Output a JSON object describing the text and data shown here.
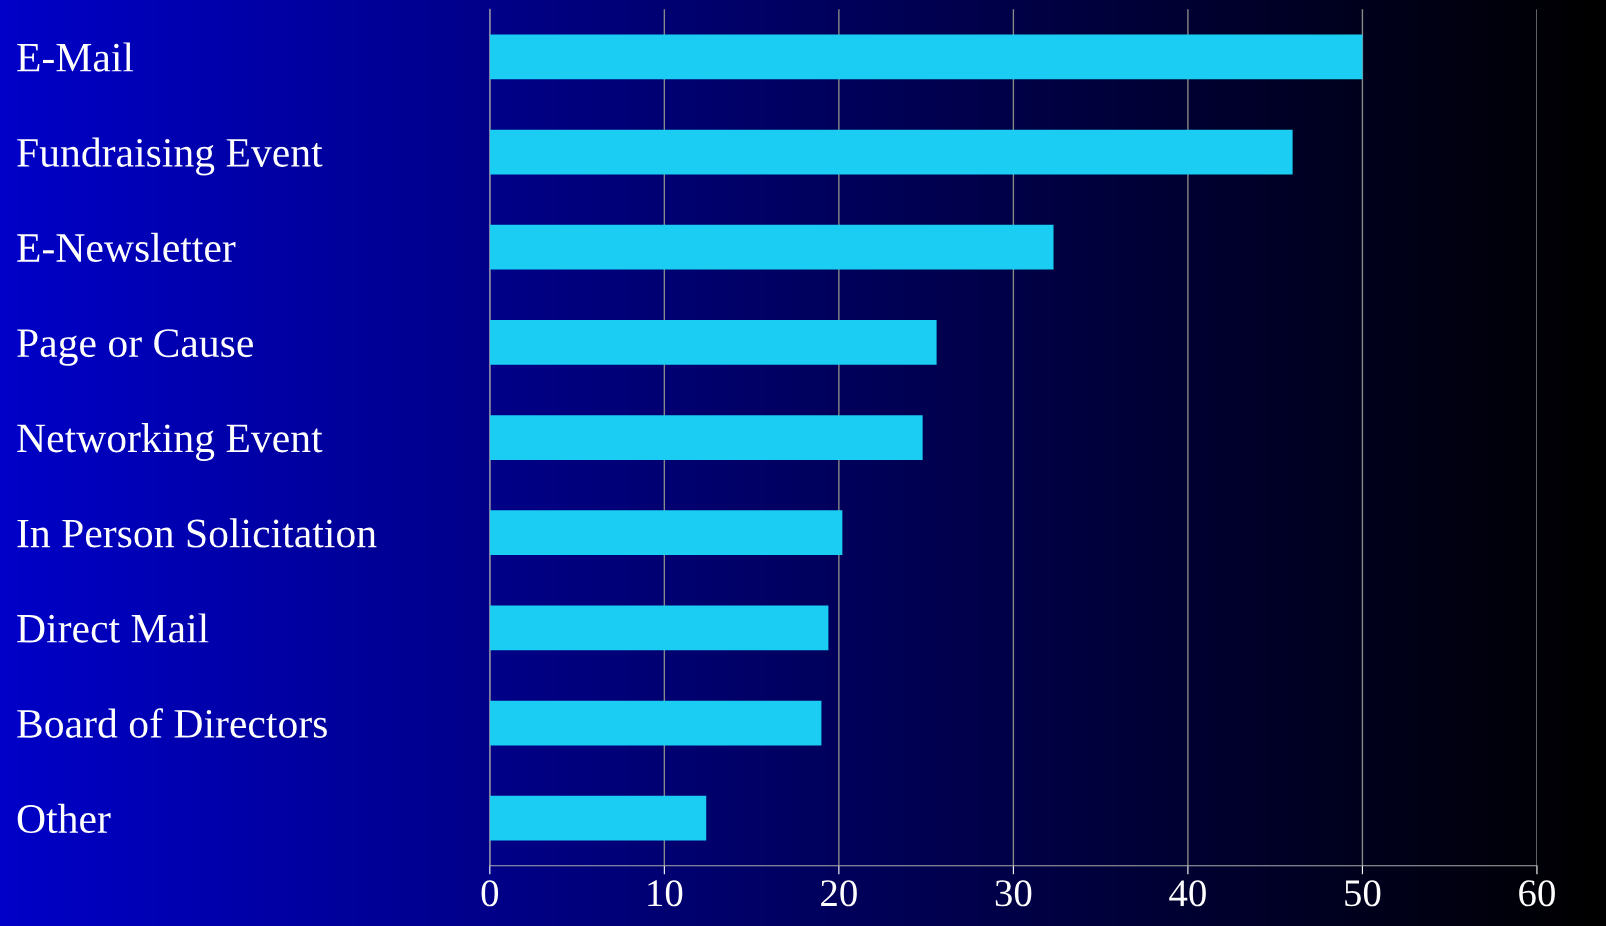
{
  "chart_data": {
    "type": "bar",
    "orientation": "horizontal",
    "categories": [
      "E-Mail",
      "Fundraising Event",
      "E-Newsletter",
      "Page or Cause",
      "Networking Event",
      "In Person Solicitation",
      "Direct Mail",
      "Board of Directors",
      "Other"
    ],
    "values": [
      50,
      46,
      32.3,
      25.6,
      24.8,
      20.2,
      19.4,
      19.0,
      12.4
    ],
    "color": "#1ccdf3",
    "xlim": [
      0,
      60
    ],
    "xticks": [
      0,
      10,
      20,
      30,
      40,
      50,
      60
    ],
    "grid": "x"
  }
}
